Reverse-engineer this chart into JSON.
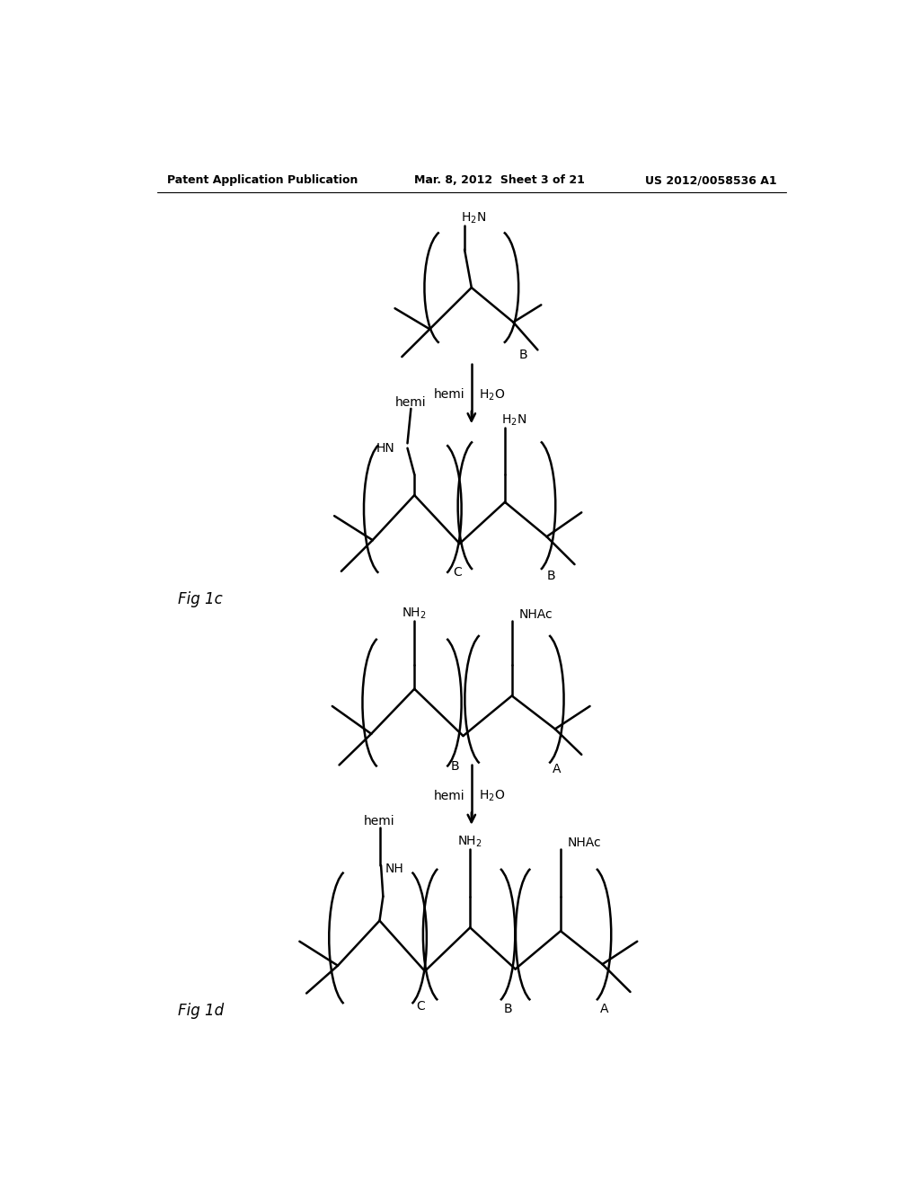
{
  "bg_color": "#ffffff",
  "text_color": "#000000",
  "header_left": "Patent Application Publication",
  "header_mid": "Mar. 8, 2012  Sheet 3 of 21",
  "header_right": "US 2012/0058536 A1",
  "fig1c_label": "Fig 1c",
  "fig1d_label": "Fig 1d"
}
